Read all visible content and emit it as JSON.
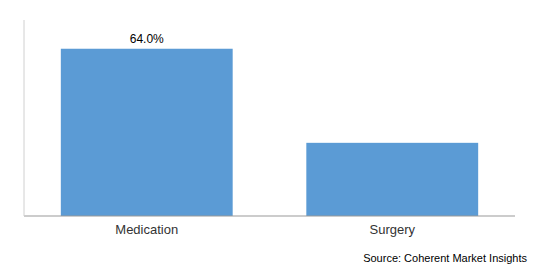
{
  "chart_data": {
    "type": "bar",
    "categories": [
      "Medication",
      "Surgery"
    ],
    "values": [
      64.0,
      28.0
    ],
    "value_labels": [
      "64.0%",
      null
    ],
    "color": "#5B9BD5",
    "ylim": [
      0,
      75
    ],
    "yticks": [],
    "tick_labels": "x",
    "source": "Source: Coherent Market Insights"
  }
}
